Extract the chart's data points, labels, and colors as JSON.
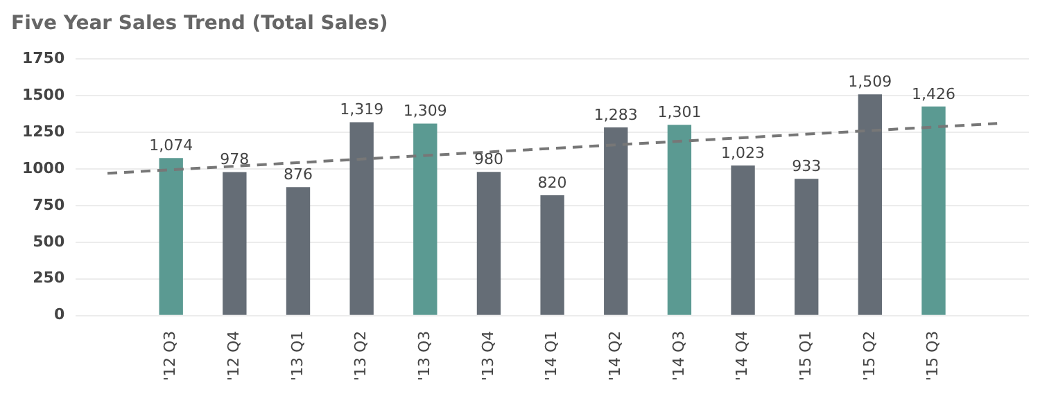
{
  "chart_data": {
    "type": "bar",
    "title": "Five Year Sales Trend (Total Sales)",
    "categories": [
      null,
      "'12 Q3",
      "'12 Q4",
      "'13 Q1",
      "'13 Q2",
      "'13 Q3",
      "'13 Q4",
      "'14 Q1",
      "'14 Q2",
      "'14 Q3",
      "'14 Q4",
      "'15 Q1",
      "'15 Q2",
      "'15 Q3",
      null
    ],
    "series": [
      {
        "values": [
          null,
          1074,
          978,
          876,
          1319,
          1309,
          980,
          820,
          1283,
          1301,
          1023,
          933,
          1509,
          1426,
          null
        ],
        "colors": [
          "#5b9a92",
          "#5b9a92",
          "#656d76",
          "#656d76",
          "#656d76",
          "#5b9a92",
          "#656d76",
          "#656d76",
          "#656d76",
          "#5b9a92",
          "#656d76",
          "#656d76",
          "#656d76",
          "#5b9a92",
          "#656d76"
        ],
        "value_labels": [
          null,
          "1,074",
          "978",
          "876",
          "1,319",
          "1,309",
          "980",
          "820",
          "1,283",
          "1,301",
          "1,023",
          "933",
          "1,509",
          "1,426",
          null
        ]
      },
      {
        "type": "line",
        "color": "#777777",
        "line_style": "dashed",
        "marker": "none",
        "values": [
          970,
          null,
          null,
          null,
          null,
          null,
          null,
          null,
          null,
          null,
          null,
          null,
          null,
          null,
          1310
        ]
      }
    ],
    "ylim": [
      0,
      1750
    ],
    "yticks": [
      0,
      250,
      500,
      750,
      1000,
      1250,
      1500,
      1750
    ],
    "grid": "y",
    "legend": false
  }
}
